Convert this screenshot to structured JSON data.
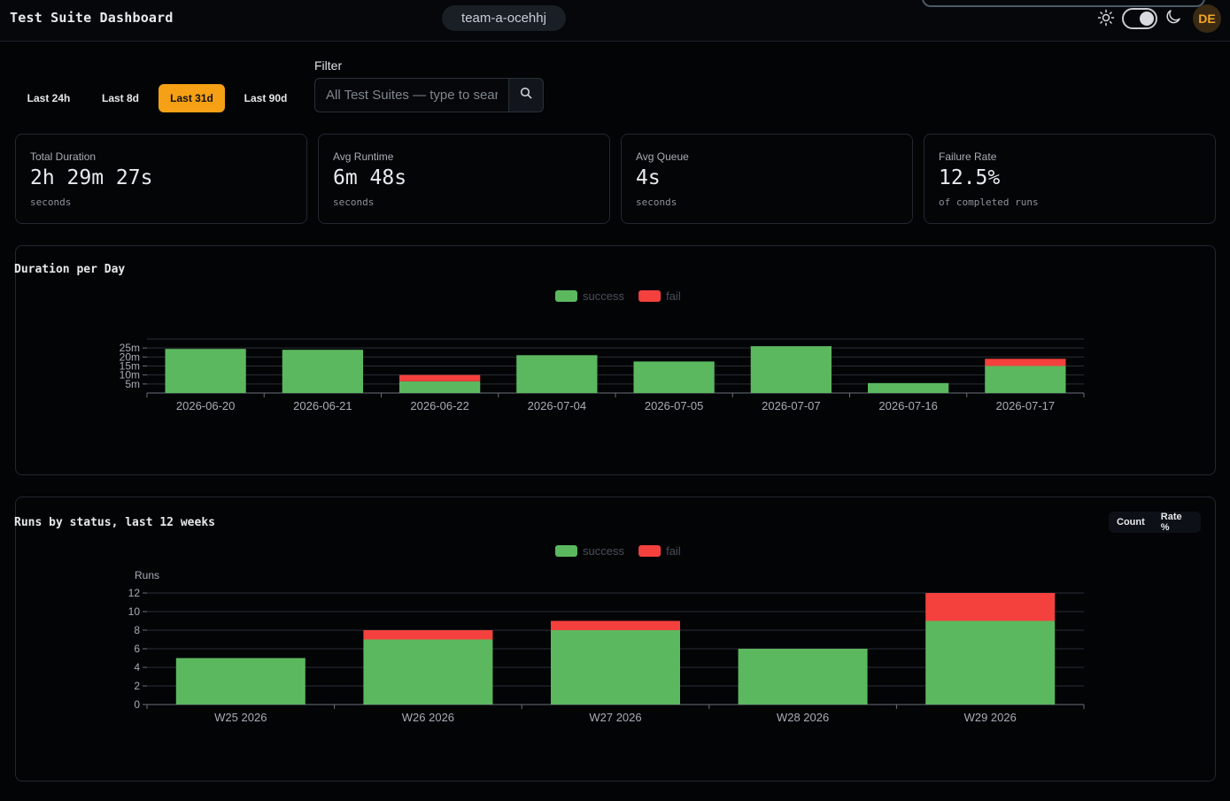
{
  "header": {
    "title": "Test Suite Dashboard",
    "team": "team-a-ocehhj",
    "avatar_initials": "DE"
  },
  "ranges": {
    "items": [
      "Last 24h",
      "Last 8d",
      "Last 31d",
      "Last 90d"
    ],
    "active": "Last 31d"
  },
  "filter": {
    "label": "Filter",
    "placeholder": "All Test Suites — type to search"
  },
  "stats": [
    {
      "label": "Total Duration",
      "value": "2h 29m 27s",
      "sub": "seconds"
    },
    {
      "label": "Avg Runtime",
      "value": "6m 48s",
      "sub": "seconds"
    },
    {
      "label": "Avg Queue",
      "value": "4s",
      "sub": "seconds"
    },
    {
      "label": "Failure Rate",
      "value": "12.5%",
      "sub": "of completed runs"
    }
  ],
  "duration_panel": {
    "title": "Duration per Day"
  },
  "runs_panel": {
    "title": "Runs by status, last 12 weeks",
    "mode_buttons": [
      "Count",
      "Rate %"
    ]
  },
  "colors": {
    "success": "#5cb85f",
    "fail": "#f4413d",
    "accent": "#f5a015"
  },
  "chart_data": [
    {
      "type": "bar",
      "stacked": true,
      "title": "Duration per Day",
      "categories": [
        "2026-06-20",
        "2026-06-21",
        "2026-06-22",
        "2026-07-04",
        "2026-07-05",
        "2026-07-07",
        "2026-07-16",
        "2026-07-17"
      ],
      "series": [
        {
          "name": "success",
          "values": [
            24.5,
            24,
            6.5,
            21,
            17.5,
            26,
            5.5,
            15
          ]
        },
        {
          "name": "fail",
          "values": [
            0,
            0,
            3.5,
            0,
            0,
            0,
            0,
            4
          ]
        }
      ],
      "ytick_labels": [
        "5m",
        "10m",
        "15m",
        "20m",
        "25m"
      ],
      "yticks": [
        5,
        10,
        15,
        20,
        25
      ],
      "ylim": [
        0,
        30
      ],
      "legend": "top-center",
      "grid": true
    },
    {
      "type": "bar",
      "stacked": true,
      "title": "Runs by status, last 12 weeks",
      "ylabel": "Runs",
      "categories": [
        "W25 2026",
        "W26 2026",
        "W27 2026",
        "W28 2026",
        "W29 2026"
      ],
      "series": [
        {
          "name": "success",
          "values": [
            5,
            7,
            8,
            6,
            9
          ]
        },
        {
          "name": "fail",
          "values": [
            0,
            1,
            1,
            0,
            3
          ]
        }
      ],
      "yticks": [
        0,
        2,
        4,
        6,
        8,
        10,
        12
      ],
      "ylim": [
        0,
        12
      ],
      "legend": "top-center",
      "grid": true
    }
  ]
}
